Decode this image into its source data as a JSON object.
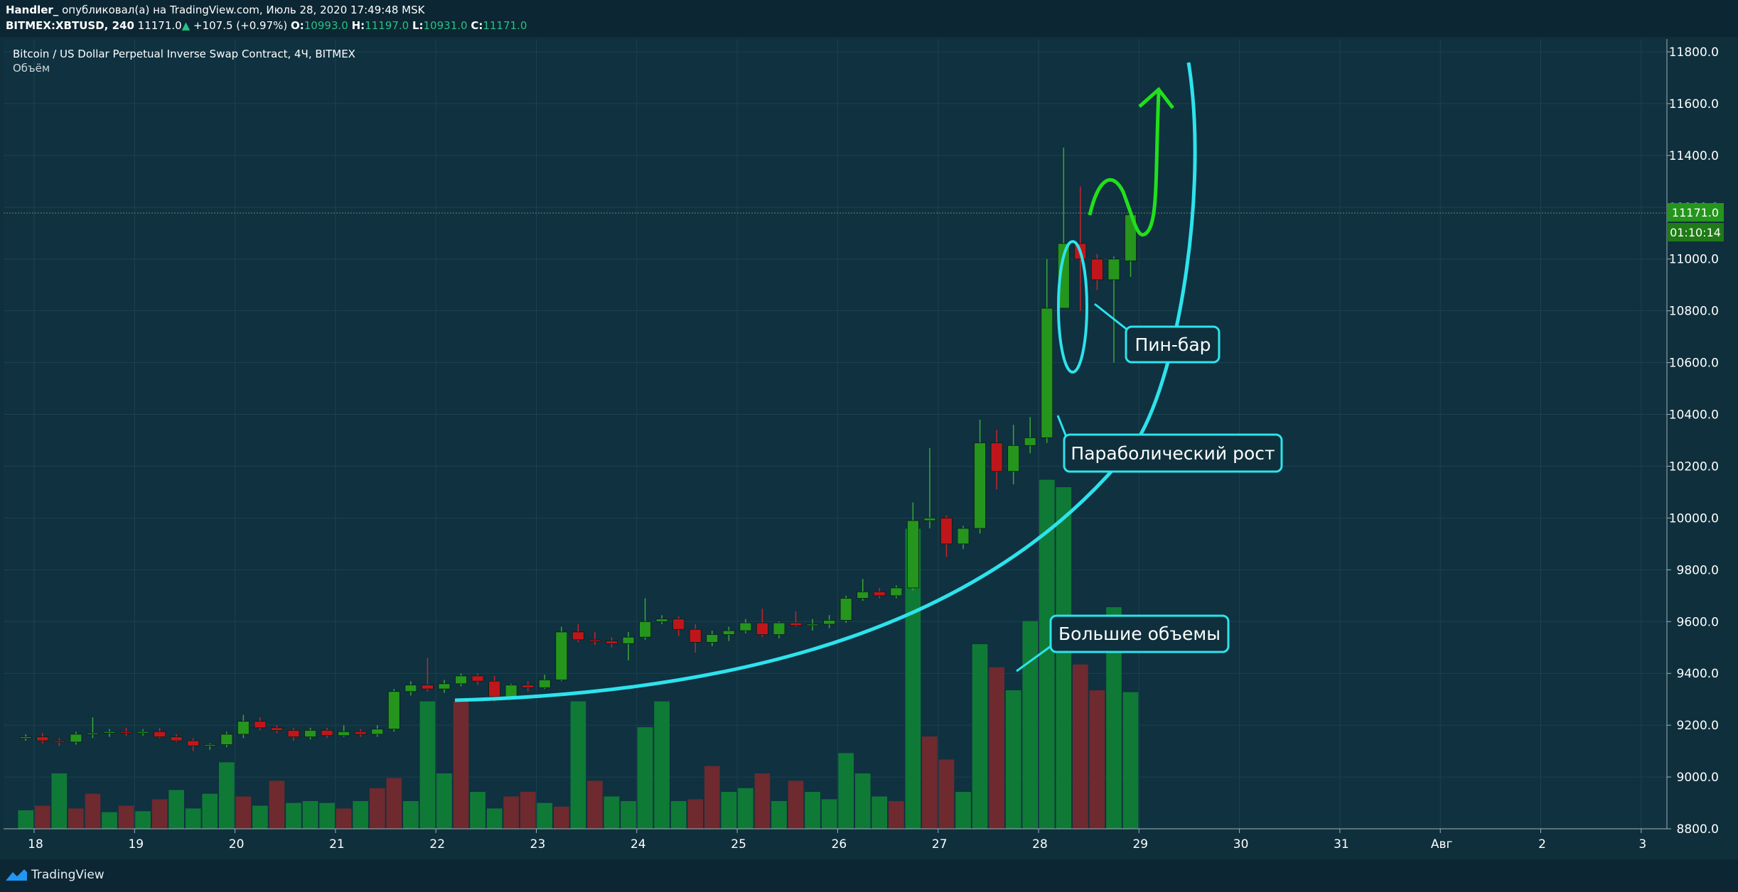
{
  "header": {
    "author": "Handler_",
    "published_text": "опубликовал(а) на TradingView.com, Июль 28, 2020 17:49:48 MSK",
    "symbol": "BITMEX:XBTUSD, 240",
    "last": "11171.0",
    "arrow": "▲",
    "change": "+107.5 (+0.97%)",
    "o_label": "O:",
    "o_value": "10993.0",
    "h_label": "H:",
    "h_value": "11197.0",
    "l_label": "L:",
    "l_value": "10931.0",
    "c_label": "C:",
    "c_value": "11171.0"
  },
  "legend": {
    "instrument": "Bitcoin / US Dollar Perpetual Inverse Swap Contract, 4Ч, BITMEX",
    "volume_label": "Объём"
  },
  "price_badge": "11171.0",
  "countdown_badge": "01:10:14",
  "footer": {
    "brand": "TradingView"
  },
  "annotations": {
    "pin_bar": "Пин-бар",
    "parabolic": "Параболический рост",
    "big_volume": "Большие объемы"
  },
  "colors": {
    "background": "#0f2f3c",
    "up": "#25951e",
    "down": "#c0161b",
    "vol_up": "#0f7a36",
    "vol_down": "#6e2a2e",
    "annotation": "#2de3ec",
    "forecast": "#21e01b"
  },
  "chart_data": {
    "type": "candlestick",
    "ylim": [
      8800,
      11800
    ],
    "y_ticks": [
      "8800.0",
      "9000.0",
      "9200.0",
      "9400.0",
      "9600.0",
      "9800.0",
      "10000.0",
      "10200.0",
      "10400.0",
      "10600.0",
      "10800.0",
      "11000.0",
      "11200.0",
      "11400.0",
      "11600.0",
      "11800.0"
    ],
    "x_ticks": [
      "18",
      "19",
      "20",
      "21",
      "22",
      "23",
      "24",
      "25",
      "26",
      "27",
      "28",
      "29",
      "30",
      "31",
      "Авг",
      "2",
      "3"
    ],
    "bars_per_day": 6,
    "first_day": 18,
    "first_bar_offset": -1,
    "candles": [
      [
        9150,
        9165,
        9140,
        9155
      ],
      [
        9155,
        9170,
        9130,
        9140
      ],
      [
        9140,
        9150,
        9120,
        9135
      ],
      [
        9135,
        9175,
        9125,
        9165
      ],
      [
        9165,
        9230,
        9150,
        9170
      ],
      [
        9170,
        9185,
        9155,
        9175
      ],
      [
        9175,
        9190,
        9160,
        9170
      ],
      [
        9170,
        9185,
        9160,
        9175
      ],
      [
        9175,
        9190,
        9150,
        9155
      ],
      [
        9155,
        9165,
        9135,
        9140
      ],
      [
        9140,
        9150,
        9100,
        9120
      ],
      [
        9120,
        9130,
        9105,
        9125
      ],
      [
        9125,
        9175,
        9115,
        9165
      ],
      [
        9165,
        9240,
        9150,
        9215
      ],
      [
        9215,
        9230,
        9180,
        9190
      ],
      [
        9190,
        9200,
        9170,
        9180
      ],
      [
        9180,
        9190,
        9140,
        9155
      ],
      [
        9155,
        9190,
        9145,
        9180
      ],
      [
        9180,
        9190,
        9150,
        9160
      ],
      [
        9160,
        9200,
        9155,
        9175
      ],
      [
        9175,
        9185,
        9155,
        9165
      ],
      [
        9165,
        9200,
        9155,
        9185
      ],
      [
        9185,
        9340,
        9175,
        9330
      ],
      [
        9330,
        9370,
        9315,
        9355
      ],
      [
        9355,
        9460,
        9330,
        9340
      ],
      [
        9340,
        9375,
        9325,
        9360
      ],
      [
        9360,
        9400,
        9350,
        9390
      ],
      [
        9390,
        9400,
        9355,
        9370
      ],
      [
        9370,
        9390,
        9290,
        9310
      ],
      [
        9310,
        9360,
        9300,
        9355
      ],
      [
        9355,
        9370,
        9330,
        9345
      ],
      [
        9345,
        9395,
        9340,
        9375
      ],
      [
        9375,
        9580,
        9370,
        9560
      ],
      [
        9560,
        9590,
        9520,
        9530
      ],
      [
        9530,
        9560,
        9510,
        9525
      ],
      [
        9525,
        9540,
        9500,
        9515
      ],
      [
        9515,
        9560,
        9450,
        9540
      ],
      [
        9540,
        9690,
        9530,
        9600
      ],
      [
        9600,
        9625,
        9590,
        9610
      ],
      [
        9610,
        9620,
        9545,
        9570
      ],
      [
        9570,
        9590,
        9480,
        9520
      ],
      [
        9520,
        9565,
        9505,
        9550
      ],
      [
        9550,
        9580,
        9525,
        9565
      ],
      [
        9565,
        9610,
        9555,
        9595
      ],
      [
        9595,
        9650,
        9540,
        9550
      ],
      [
        9550,
        9600,
        9535,
        9595
      ],
      [
        9595,
        9640,
        9580,
        9585
      ],
      [
        9585,
        9610,
        9565,
        9590
      ],
      [
        9590,
        9625,
        9575,
        9605
      ],
      [
        9605,
        9700,
        9595,
        9690
      ],
      [
        9690,
        9765,
        9680,
        9715
      ],
      [
        9715,
        9730,
        9690,
        9700
      ],
      [
        9700,
        9740,
        9690,
        9730
      ],
      [
        9730,
        10060,
        9720,
        9990
      ],
      [
        9990,
        10270,
        9960,
        10000
      ],
      [
        10000,
        10010,
        9850,
        9900
      ],
      [
        9900,
        9970,
        9880,
        9960
      ],
      [
        9960,
        10380,
        9940,
        10290
      ],
      [
        10290,
        10340,
        10110,
        10180
      ],
      [
        10180,
        10360,
        10130,
        10280
      ],
      [
        10280,
        10390,
        10250,
        10310
      ],
      [
        10310,
        11000,
        10290,
        10810
      ],
      [
        10810,
        11430,
        10810,
        11060
      ],
      [
        11060,
        11280,
        10800,
        11000
      ],
      [
        11000,
        11020,
        10880,
        10920
      ],
      [
        10920,
        11010,
        10600,
        11000
      ],
      [
        10993,
        11197,
        10931,
        11171
      ]
    ],
    "volume": [
      [
        20,
        1
      ],
      [
        25,
        0
      ],
      [
        60,
        1
      ],
      [
        22,
        0
      ],
      [
        38,
        0
      ],
      [
        18,
        1
      ],
      [
        25,
        0
      ],
      [
        19,
        1
      ],
      [
        32,
        0
      ],
      [
        42,
        1
      ],
      [
        22,
        1
      ],
      [
        38,
        1
      ],
      [
        72,
        1
      ],
      [
        35,
        0
      ],
      [
        25,
        1
      ],
      [
        52,
        0
      ],
      [
        28,
        1
      ],
      [
        30,
        1
      ],
      [
        28,
        1
      ],
      [
        22,
        0
      ],
      [
        30,
        1
      ],
      [
        44,
        0
      ],
      [
        55,
        0
      ],
      [
        30,
        1
      ],
      [
        138,
        1
      ],
      [
        60,
        1
      ],
      [
        138,
        0
      ],
      [
        40,
        1
      ],
      [
        22,
        1
      ],
      [
        35,
        0
      ],
      [
        40,
        0
      ],
      [
        28,
        1
      ],
      [
        24,
        0
      ],
      [
        138,
        1
      ],
      [
        52,
        0
      ],
      [
        35,
        1
      ],
      [
        30,
        1
      ],
      [
        110,
        1
      ],
      [
        138,
        1
      ],
      [
        30,
        1
      ],
      [
        32,
        0
      ],
      [
        68,
        0
      ],
      [
        40,
        1
      ],
      [
        44,
        1
      ],
      [
        60,
        0
      ],
      [
        30,
        1
      ],
      [
        52,
        0
      ],
      [
        40,
        1
      ],
      [
        32,
        1
      ],
      [
        82,
        1
      ],
      [
        60,
        1
      ],
      [
        35,
        1
      ],
      [
        30,
        0
      ],
      [
        325,
        1
      ],
      [
        100,
        0
      ],
      [
        75,
        0
      ],
      [
        40,
        1
      ],
      [
        200,
        1
      ],
      [
        175,
        0
      ],
      [
        150,
        1
      ],
      [
        225,
        1
      ],
      [
        378,
        1
      ],
      [
        370,
        1
      ],
      [
        178,
        0
      ],
      [
        150,
        0
      ],
      [
        240,
        1
      ],
      [
        148,
        1
      ]
    ]
  }
}
